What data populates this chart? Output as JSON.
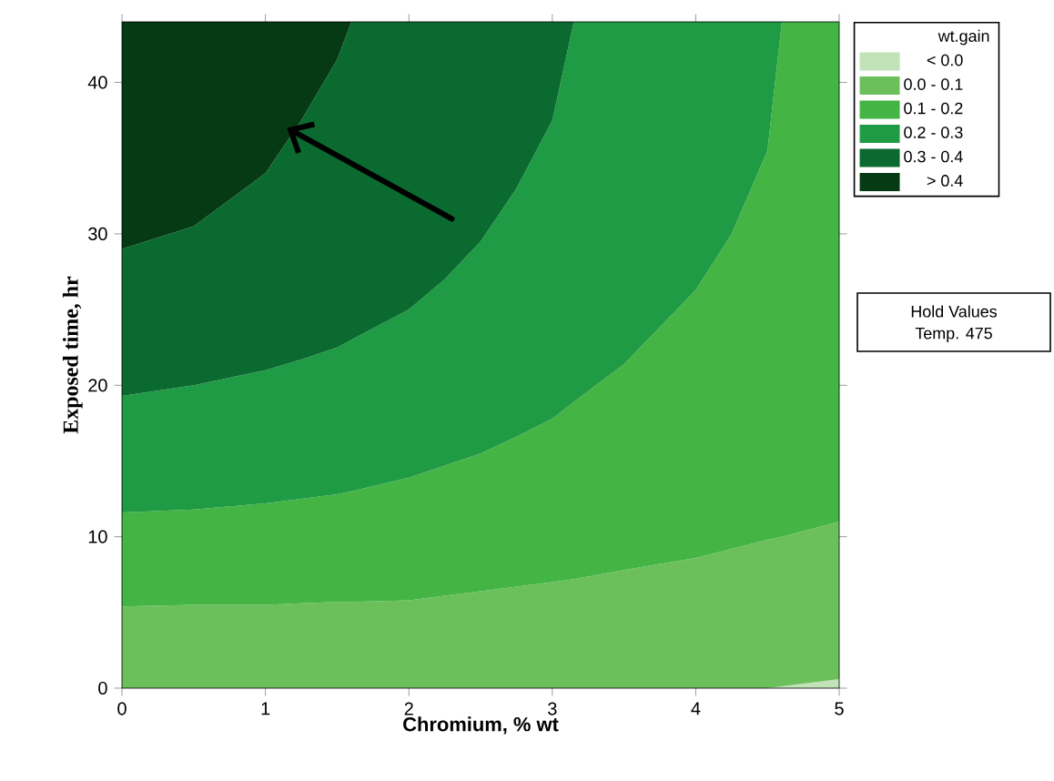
{
  "chart_data": {
    "type": "area",
    "stacked": true,
    "xlabel": "Chromium, % wt",
    "ylabel": "Exposed time, hr",
    "legend_title": "wt.gain",
    "xlim": [
      0,
      5
    ],
    "xticks": [
      0,
      1,
      2,
      3,
      4,
      5
    ],
    "ylim": [
      0,
      44
    ],
    "yticks": [
      0,
      10,
      20,
      30,
      40
    ],
    "legend": "right",
    "annotations": [
      "Hold Values",
      "Temp. 475"
    ],
    "x": [
      0,
      0.5,
      1,
      1.25,
      1.5,
      1.6,
      2,
      2.25,
      2.5,
      2.75,
      3,
      3.15,
      3.5,
      4,
      4.25,
      4.5,
      4.6,
      5
    ],
    "series": [
      {
        "name": "< 0.0",
        "color": "#c2e2b8",
        "values": [
          0,
          0,
          0,
          0,
          0,
          0,
          0,
          0,
          0,
          0,
          0,
          0,
          0,
          0,
          0,
          0,
          0.12,
          0.6
        ]
      },
      {
        "name": "0.0 - 0.1",
        "color": "#6cc05c",
        "values": [
          5.4,
          5.5,
          5.5,
          5.6,
          5.7,
          5.7,
          5.8,
          6.1,
          6.4,
          6.7,
          7,
          7.2,
          7.8,
          8.6,
          9.2,
          9.8,
          9.88,
          10.4
        ]
      },
      {
        "name": "0.1 - 0.2",
        "color": "#44b444",
        "values": [
          6.2,
          6.3,
          6.7,
          6.9,
          7.1,
          7.3,
          8.1,
          8.6,
          9.1,
          9.9,
          10.8,
          11.7,
          13.6,
          17.7,
          20.8,
          25.7,
          34,
          33
        ]
      },
      {
        "name": "0.2 - 0.3",
        "color": "#1f9a45",
        "values": [
          7.7,
          8.2,
          8.8,
          9.2,
          9.7,
          10,
          11.1,
          12.3,
          14,
          16.4,
          19.7,
          25.1,
          22.6,
          17.7,
          14,
          8.5,
          0,
          0
        ]
      },
      {
        "name": "0.3 - 0.4",
        "color": "#0b6a2f",
        "values": [
          9.7,
          10.5,
          13,
          15.8,
          19,
          21,
          19,
          17,
          14.5,
          11,
          6.5,
          0,
          0,
          0,
          0,
          0,
          0,
          0
        ]
      },
      {
        "name": "> 0.4",
        "color": "#053a14",
        "values": [
          15,
          13.5,
          10,
          6.5,
          2.5,
          0,
          0,
          0,
          0,
          0,
          0,
          0,
          0,
          0,
          0,
          0,
          0,
          0
        ]
      }
    ]
  }
}
